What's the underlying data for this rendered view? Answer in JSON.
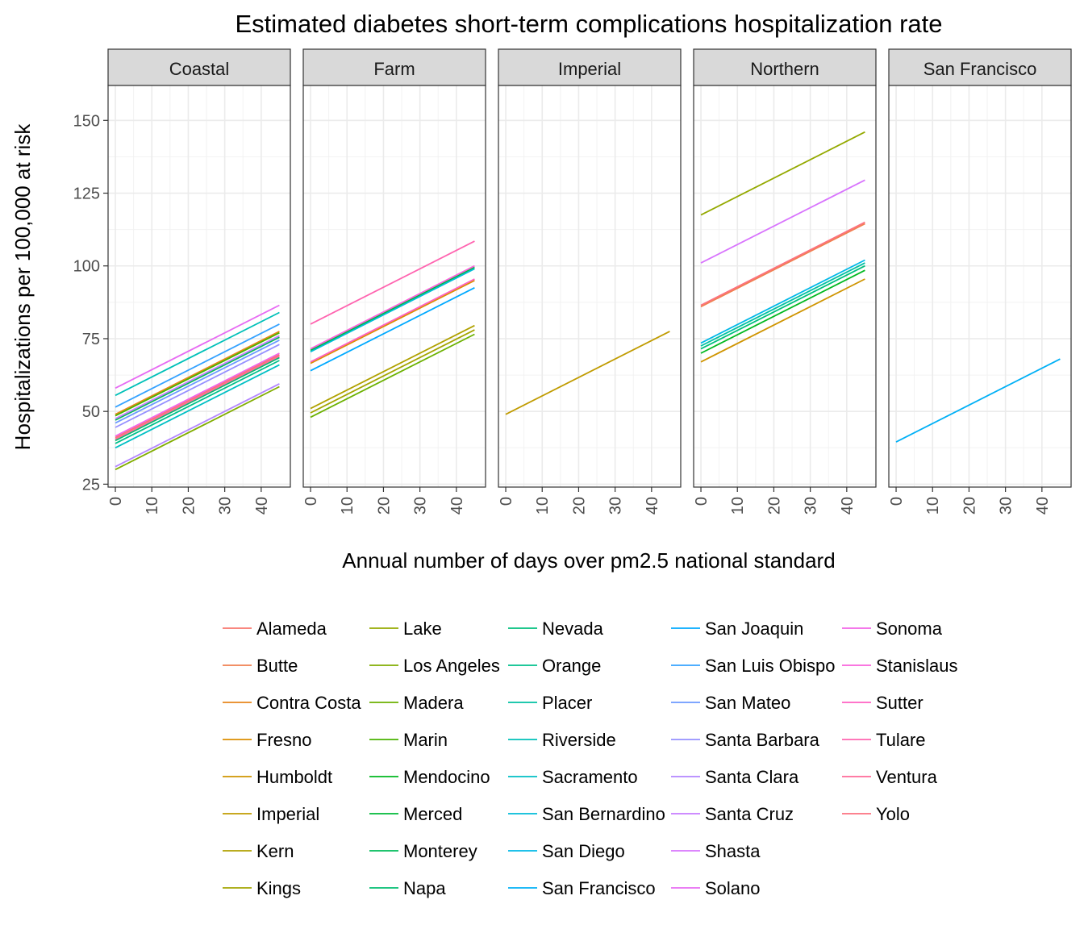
{
  "chart_data": {
    "type": "line",
    "title": "Estimated diabetes short-term complications hospitalization rate",
    "xlabel": "Annual number of days over pm2.5 national standard",
    "ylabel": "Hospitalizations per 100,000 at risk",
    "xlim": [
      -2,
      48
    ],
    "ylim": [
      24,
      162
    ],
    "x_ticks": [
      0,
      10,
      20,
      30,
      40
    ],
    "y_ticks": [
      25,
      50,
      75,
      100,
      125,
      150
    ],
    "grid": true,
    "legend_position": "bottom",
    "panels": [
      "Coastal",
      "Farm",
      "Imperial",
      "Northern",
      "San Francisco"
    ],
    "series": [
      {
        "name": "Alameda",
        "color": "#F8766D",
        "panel": "Coastal",
        "x": [
          0,
          45
        ],
        "y": [
          41.0,
          69.5
        ]
      },
      {
        "name": "Butte",
        "color": "#F07F4F",
        "panel": "Northern",
        "x": [
          0,
          45
        ],
        "y": [
          86.0,
          114.5
        ]
      },
      {
        "name": "Contra Costa",
        "color": "#E7861B",
        "panel": "Coastal",
        "x": [
          0,
          45
        ],
        "y": [
          49.0,
          77.5
        ]
      },
      {
        "name": "Fresno",
        "color": "#DB8E00",
        "panel": "Farm",
        "x": [
          0,
          45
        ],
        "y": [
          66.5,
          95.0
        ]
      },
      {
        "name": "Humboldt",
        "color": "#CF9400",
        "panel": "Northern",
        "x": [
          0,
          45
        ],
        "y": [
          67.0,
          95.5
        ]
      },
      {
        "name": "Imperial",
        "color": "#C09B00",
        "panel": "Imperial",
        "x": [
          0,
          45
        ],
        "y": [
          49.0,
          77.5
        ]
      },
      {
        "name": "Kern",
        "color": "#B0A100",
        "panel": "Farm",
        "x": [
          0,
          45
        ],
        "y": [
          51.0,
          79.5
        ]
      },
      {
        "name": "Kings",
        "color": "#A3A500",
        "panel": "Farm",
        "x": [
          0,
          45
        ],
        "y": [
          49.5,
          78.0
        ]
      },
      {
        "name": "Lake",
        "color": "#94A900",
        "panel": "Northern",
        "x": [
          0,
          45
        ],
        "y": [
          117.5,
          146.0
        ]
      },
      {
        "name": "Los Angeles",
        "color": "#81AD00",
        "panel": "Coastal",
        "x": [
          0,
          45
        ],
        "y": [
          30.0,
          58.5
        ]
      },
      {
        "name": "Madera",
        "color": "#6BB100",
        "panel": "Farm",
        "x": [
          0,
          45
        ],
        "y": [
          48.0,
          76.5
        ]
      },
      {
        "name": "Marin",
        "color": "#4AB300",
        "panel": "Coastal",
        "x": [
          0,
          45
        ],
        "y": [
          48.5,
          77.0
        ]
      },
      {
        "name": "Mendocino",
        "color": "#00B81F",
        "panel": "Northern",
        "x": [
          0,
          45
        ],
        "y": [
          70.0,
          98.5
        ]
      },
      {
        "name": "Merced",
        "color": "#00BA38",
        "panel": "Farm",
        "x": [
          0,
          45
        ],
        "y": [
          71.0,
          99.5
        ]
      },
      {
        "name": "Monterey",
        "color": "#00BC59",
        "panel": "Coastal",
        "x": [
          0,
          45
        ],
        "y": [
          47.0,
          75.5
        ]
      },
      {
        "name": "Napa",
        "color": "#00BD70",
        "panel": "Coastal",
        "x": [
          0,
          45
        ],
        "y": [
          40.0,
          68.5
        ]
      },
      {
        "name": "Nevada",
        "color": "#00BF7D",
        "panel": "Northern",
        "x": [
          0,
          45
        ],
        "y": [
          71.5,
          100.0
        ]
      },
      {
        "name": "Orange",
        "color": "#00C08B",
        "panel": "Coastal",
        "x": [
          0,
          45
        ],
        "y": [
          39.0,
          67.5
        ]
      },
      {
        "name": "Placer",
        "color": "#00C1A3",
        "panel": "Northern",
        "x": [
          0,
          45
        ],
        "y": [
          72.5,
          101.0
        ]
      },
      {
        "name": "Riverside",
        "color": "#00C0B8",
        "panel": "Coastal",
        "x": [
          0,
          45
        ],
        "y": [
          55.5,
          84.0
        ]
      },
      {
        "name": "Sacramento",
        "color": "#00BFC4",
        "panel": "Coastal",
        "x": [
          0,
          45
        ],
        "y": [
          37.5,
          66.0
        ]
      },
      {
        "name": "San Bernardino",
        "color": "#00BCD8",
        "panel": "Farm",
        "x": [
          0,
          45
        ],
        "y": [
          70.5,
          99.0
        ]
      },
      {
        "name": "San Diego",
        "color": "#00B8E7",
        "panel": "Northern",
        "x": [
          0,
          45
        ],
        "y": [
          73.5,
          102.0
        ]
      },
      {
        "name": "San Francisco",
        "color": "#00B0F6",
        "panel": "San Francisco",
        "x": [
          0,
          45
        ],
        "y": [
          39.5,
          68.0
        ]
      },
      {
        "name": "San Joaquin",
        "color": "#00A9FF",
        "panel": "Farm",
        "x": [
          0,
          45
        ],
        "y": [
          64.0,
          92.5
        ]
      },
      {
        "name": "San Luis Obispo",
        "color": "#35A2FF",
        "panel": "Coastal",
        "x": [
          0,
          45
        ],
        "y": [
          51.5,
          80.0
        ]
      },
      {
        "name": "San Mateo",
        "color": "#6B9AFF",
        "panel": "Coastal",
        "x": [
          0,
          45
        ],
        "y": [
          46.0,
          74.5
        ]
      },
      {
        "name": "Santa Barbara",
        "color": "#9590FF",
        "panel": "Coastal",
        "x": [
          0,
          45
        ],
        "y": [
          44.5,
          73.0
        ]
      },
      {
        "name": "Santa Clara",
        "color": "#B385FF",
        "panel": "Coastal",
        "x": [
          0,
          45
        ],
        "y": [
          31.0,
          59.5
        ]
      },
      {
        "name": "Santa Cruz",
        "color": "#C77CFF",
        "panel": "Coastal",
        "x": [
          0,
          45
        ],
        "y": [
          47.5,
          76.0
        ]
      },
      {
        "name": "Shasta",
        "color": "#D874FD",
        "panel": "Northern",
        "x": [
          0,
          45
        ],
        "y": [
          101.0,
          129.5
        ]
      },
      {
        "name": "Solano",
        "color": "#E76BF3",
        "panel": "Coastal",
        "x": [
          0,
          45
        ],
        "y": [
          58.0,
          86.5
        ]
      },
      {
        "name": "Sonoma",
        "color": "#F265E7",
        "panel": "Coastal",
        "x": [
          0,
          45
        ],
        "y": [
          41.5,
          70.0
        ]
      },
      {
        "name": "Stanislaus",
        "color": "#FA62DB",
        "panel": "Farm",
        "x": [
          0,
          45
        ],
        "y": [
          71.5,
          100.0
        ]
      },
      {
        "name": "Sutter",
        "color": "#FF61C3",
        "panel": "Farm",
        "x": [
          0,
          45
        ],
        "y": [
          67.0,
          95.5
        ]
      },
      {
        "name": "Tulare",
        "color": "#FF64B0",
        "panel": "Farm",
        "x": [
          0,
          45
        ],
        "y": [
          80.0,
          108.5
        ]
      },
      {
        "name": "Ventura",
        "color": "#FF6A98",
        "panel": "Coastal",
        "x": [
          0,
          45
        ],
        "y": [
          40.5,
          69.0
        ]
      },
      {
        "name": "Yolo",
        "color": "#FC717F",
        "panel": "Northern",
        "x": [
          0,
          45
        ],
        "y": [
          86.5,
          115.0
        ]
      }
    ]
  }
}
